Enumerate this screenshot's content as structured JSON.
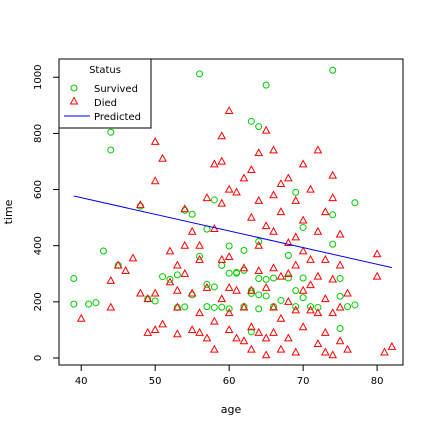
{
  "chart_data": {
    "type": "scatter",
    "xlabel": "age",
    "ylabel": "time",
    "xlim": [
      37,
      83.5
    ],
    "ylim": [
      -25,
      1065
    ],
    "x_ticks": [
      40,
      50,
      60,
      70,
      80
    ],
    "y_ticks": [
      0,
      200,
      400,
      600,
      800,
      1000
    ],
    "grid": false,
    "legend": {
      "title": "Status",
      "position": "top-left",
      "entries": [
        {
          "label": "Survived",
          "symbol": "circle",
          "color": "#00cc00"
        },
        {
          "label": "Died",
          "symbol": "triangle",
          "color": "#ff0000"
        },
        {
          "label": "Predicted",
          "symbol": "line",
          "color": "#0000ff"
        }
      ]
    },
    "series": [
      {
        "name": "Survived",
        "color": "#00cc00",
        "marker": "circle",
        "points": [
          [
            39,
            283
          ],
          [
            39,
            192
          ],
          [
            41,
            192
          ],
          [
            42,
            197
          ],
          [
            43,
            381
          ],
          [
            44,
            804
          ],
          [
            44,
            741
          ],
          [
            45,
            330
          ],
          [
            48,
            541
          ],
          [
            49,
            211
          ],
          [
            50,
            203
          ],
          [
            51,
            290
          ],
          [
            52,
            280
          ],
          [
            53,
            296
          ],
          [
            53,
            180
          ],
          [
            54,
            182
          ],
          [
            54,
            526
          ],
          [
            55,
            512
          ],
          [
            55,
            225
          ],
          [
            56,
            1012
          ],
          [
            56,
            362
          ],
          [
            57,
            459
          ],
          [
            57,
            262
          ],
          [
            57,
            183
          ],
          [
            58,
            563
          ],
          [
            58,
            253
          ],
          [
            58,
            180
          ],
          [
            59,
            330
          ],
          [
            59,
            181
          ],
          [
            60,
            399
          ],
          [
            60,
            302
          ],
          [
            60,
            175
          ],
          [
            61,
            305
          ],
          [
            61,
            302
          ],
          [
            62,
            383
          ],
          [
            62,
            312
          ],
          [
            62,
            183
          ],
          [
            63,
            843
          ],
          [
            63,
            240
          ],
          [
            63,
            230
          ],
          [
            63,
            93
          ],
          [
            64,
            824
          ],
          [
            64,
            415
          ],
          [
            64,
            283
          ],
          [
            64,
            225
          ],
          [
            64,
            175
          ],
          [
            65,
            972
          ],
          [
            65,
            280
          ],
          [
            65,
            221
          ],
          [
            66,
            285
          ],
          [
            66,
            183
          ],
          [
            67,
            205
          ],
          [
            68,
            365
          ],
          [
            68,
            285
          ],
          [
            69,
            590
          ],
          [
            69,
            240
          ],
          [
            69,
            183
          ],
          [
            70,
            465
          ],
          [
            70,
            285
          ],
          [
            70,
            215
          ],
          [
            71,
            183
          ],
          [
            72,
            180
          ],
          [
            74,
            1025
          ],
          [
            74,
            510
          ],
          [
            74,
            405
          ],
          [
            75,
            283
          ],
          [
            75,
            220
          ],
          [
            75,
            105
          ],
          [
            76,
            183
          ],
          [
            77,
            553
          ],
          [
            77,
            189
          ]
        ]
      },
      {
        "name": "Died",
        "color": "#ff0000",
        "marker": "triangle",
        "points": [
          [
            40,
            140
          ],
          [
            44,
            180
          ],
          [
            44,
            275
          ],
          [
            45,
            330
          ],
          [
            46,
            310
          ],
          [
            47,
            355
          ],
          [
            48,
            545
          ],
          [
            48,
            230
          ],
          [
            49,
            90
          ],
          [
            49,
            210
          ],
          [
            50,
            770
          ],
          [
            50,
            630
          ],
          [
            50,
            230
          ],
          [
            50,
            100
          ],
          [
            51,
            710
          ],
          [
            51,
            120
          ],
          [
            52,
            380
          ],
          [
            52,
            270
          ],
          [
            53,
            240
          ],
          [
            53,
            85
          ],
          [
            53,
            330
          ],
          [
            53,
            180
          ],
          [
            54,
            530
          ],
          [
            54,
            400
          ],
          [
            54,
            300
          ],
          [
            55,
            450
          ],
          [
            55,
            230
          ],
          [
            55,
            100
          ],
          [
            56,
            400
          ],
          [
            56,
            350
          ],
          [
            56,
            160
          ],
          [
            56,
            90
          ],
          [
            57,
            570
          ],
          [
            57,
            250
          ],
          [
            57,
            70
          ],
          [
            58,
            690
          ],
          [
            58,
            460
          ],
          [
            58,
            130
          ],
          [
            58,
            30
          ],
          [
            59,
            790
          ],
          [
            59,
            700
          ],
          [
            59,
            550
          ],
          [
            59,
            350
          ],
          [
            59,
            210
          ],
          [
            60,
            880
          ],
          [
            60,
            600
          ],
          [
            60,
            360
          ],
          [
            60,
            250
          ],
          [
            60,
            160
          ],
          [
            60,
            100
          ],
          [
            61,
            590
          ],
          [
            61,
            240
          ],
          [
            61,
            70
          ],
          [
            62,
            640
          ],
          [
            62,
            320
          ],
          [
            62,
            180
          ],
          [
            62,
            60
          ],
          [
            63,
            670
          ],
          [
            63,
            500
          ],
          [
            63,
            240
          ],
          [
            63,
            110
          ],
          [
            63,
            30
          ],
          [
            64,
            730
          ],
          [
            64,
            560
          ],
          [
            64,
            400
          ],
          [
            64,
            310
          ],
          [
            64,
            90
          ],
          [
            65,
            810
          ],
          [
            65,
            470
          ],
          [
            65,
            250
          ],
          [
            65,
            70
          ],
          [
            65,
            10
          ],
          [
            66,
            740
          ],
          [
            66,
            580
          ],
          [
            66,
            450
          ],
          [
            66,
            320
          ],
          [
            66,
            180
          ],
          [
            66,
            90
          ],
          [
            67,
            620
          ],
          [
            67,
            520
          ],
          [
            67,
            290
          ],
          [
            67,
            140
          ],
          [
            67,
            30
          ],
          [
            68,
            640
          ],
          [
            68,
            410
          ],
          [
            68,
            300
          ],
          [
            68,
            200
          ],
          [
            68,
            70
          ],
          [
            69,
            560
          ],
          [
            69,
            430
          ],
          [
            69,
            330
          ],
          [
            69,
            170
          ],
          [
            69,
            20
          ],
          [
            70,
            690
          ],
          [
            70,
            490
          ],
          [
            70,
            380
          ],
          [
            70,
            240
          ],
          [
            70,
            110
          ],
          [
            71,
            600
          ],
          [
            71,
            350
          ],
          [
            71,
            260
          ],
          [
            71,
            170
          ],
          [
            72,
            740
          ],
          [
            72,
            450
          ],
          [
            72,
            290
          ],
          [
            72,
            160
          ],
          [
            72,
            50
          ],
          [
            73,
            520
          ],
          [
            73,
            350
          ],
          [
            73,
            210
          ],
          [
            73,
            90
          ],
          [
            73,
            20
          ],
          [
            74,
            650
          ],
          [
            74,
            570
          ],
          [
            74,
            280
          ],
          [
            74,
            160
          ],
          [
            74,
            10
          ],
          [
            75,
            440
          ],
          [
            75,
            330
          ],
          [
            75,
            180
          ],
          [
            75,
            60
          ],
          [
            76,
            230
          ],
          [
            76,
            30
          ],
          [
            80,
            370
          ],
          [
            80,
            290
          ],
          [
            81,
            20
          ],
          [
            82,
            40
          ]
        ]
      }
    ],
    "trend_line": {
      "name": "Predicted",
      "color": "#0000ff",
      "x": [
        39,
        82
      ],
      "y": [
        577,
        322
      ]
    }
  }
}
